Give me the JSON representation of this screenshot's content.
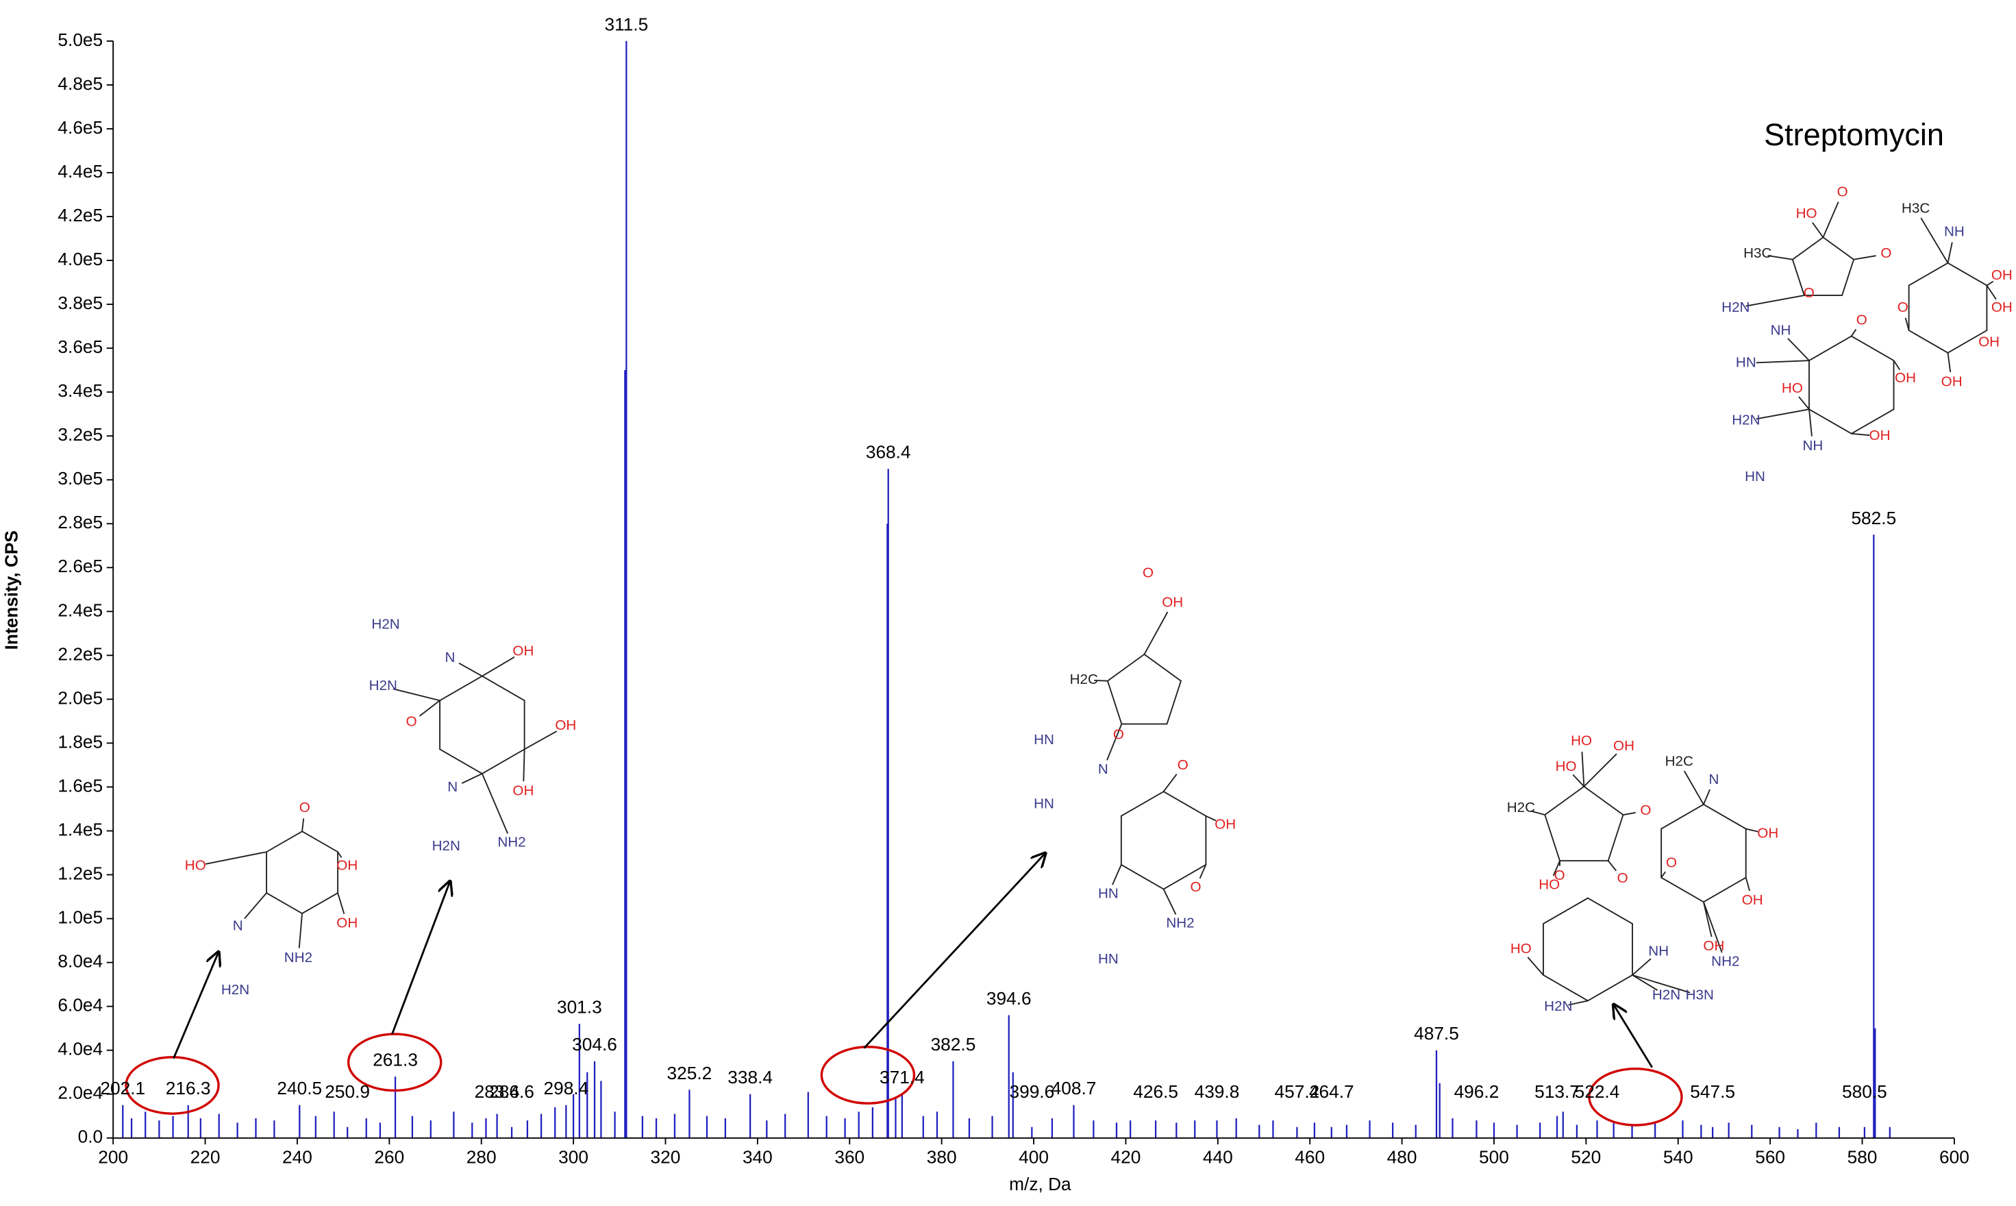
{
  "chart_data": {
    "type": "bar",
    "x_label": "m/z, Da",
    "y_label": "Intensity, CPS",
    "color": "#1f1fbf",
    "x": [
      202.1,
      216.3,
      240.5,
      250.9,
      261.3,
      283.4,
      286.6,
      298.4,
      301.3,
      304.6,
      311.5,
      325.2,
      338.4,
      368.4,
      371.4,
      382.5,
      394.6,
      399.6,
      408.7,
      426.5,
      439.8,
      457.2,
      464.7,
      487.5,
      496.2,
      513.7,
      522.4,
      547.5,
      580.5,
      582.5
    ],
    "values": [
      15000,
      15000,
      15000,
      5000,
      28000,
      11000,
      5000,
      15000,
      52000,
      35000,
      500000,
      22000,
      20000,
      305000,
      20000,
      35000,
      56000,
      5000,
      15000,
      8000,
      8000,
      5000,
      5000,
      40000,
      8000,
      10000,
      8000,
      5000,
      5000,
      275000
    ],
    "minor_peaks": {
      "x": [
        204,
        207,
        210,
        213,
        219,
        223,
        227,
        231,
        235,
        244,
        248,
        255,
        258,
        265,
        269,
        274,
        278,
        281,
        290,
        293,
        296,
        300,
        303,
        306,
        309,
        311.2,
        315,
        318,
        322,
        329,
        333,
        342,
        346,
        351,
        355,
        359,
        362,
        365,
        368.2,
        370,
        376,
        379,
        386,
        391,
        395.5,
        404,
        413,
        418,
        421,
        431,
        435,
        444,
        449,
        452,
        461,
        468,
        473,
        478,
        483,
        488.2,
        491,
        500,
        505,
        510,
        515,
        518,
        526,
        530,
        535,
        541,
        545,
        551,
        556,
        562,
        566,
        570,
        575,
        582.8,
        586
      ],
      "values": [
        9000,
        12000,
        8000,
        10000,
        9000,
        11000,
        7000,
        9000,
        8000,
        10000,
        12000,
        9000,
        7000,
        10000,
        8000,
        12000,
        7000,
        9000,
        8000,
        11000,
        14000,
        20000,
        30000,
        26000,
        12000,
        350000,
        10000,
        9000,
        11000,
        10000,
        9000,
        8000,
        11000,
        21000,
        10000,
        9000,
        12000,
        14000,
        280000,
        18000,
        10000,
        12000,
        9000,
        10000,
        30000,
        9000,
        8000,
        7000,
        8000,
        7000,
        8000,
        9000,
        6000,
        8000,
        7000,
        6000,
        8000,
        7000,
        6000,
        25000,
        9000,
        7000,
        6000,
        7000,
        12000,
        6000,
        7000,
        6000,
        7000,
        8000,
        6000,
        7000,
        6000,
        5000,
        4000,
        7000,
        5000,
        50000,
        5000
      ]
    },
    "xlim": [
      200,
      600
    ],
    "xticks": [
      200,
      220,
      240,
      260,
      280,
      300,
      320,
      340,
      360,
      380,
      400,
      420,
      440,
      460,
      480,
      500,
      520,
      540,
      560,
      580,
      600
    ],
    "ylim": [
      0,
      500000
    ],
    "yticks": [
      {
        "value": 0,
        "label": "0.0"
      },
      {
        "value": 20000,
        "label": "2.0e4"
      },
      {
        "value": 40000,
        "label": "4.0e4"
      },
      {
        "value": 60000,
        "label": "6.0e4"
      },
      {
        "value": 80000,
        "label": "8.0e4"
      },
      {
        "value": 100000,
        "label": "1.0e5"
      },
      {
        "value": 120000,
        "label": "1.2e5"
      },
      {
        "value": 140000,
        "label": "1.4e5"
      },
      {
        "value": 160000,
        "label": "1.6e5"
      },
      {
        "value": 180000,
        "label": "1.8e5"
      },
      {
        "value": 200000,
        "label": "2.0e5"
      },
      {
        "value": 220000,
        "label": "2.2e5"
      },
      {
        "value": 240000,
        "label": "2.4e5"
      },
      {
        "value": 260000,
        "label": "2.6e5"
      },
      {
        "value": 280000,
        "label": "2.8e5"
      },
      {
        "value": 300000,
        "label": "3.0e5"
      },
      {
        "value": 320000,
        "label": "3.2e5"
      },
      {
        "value": 340000,
        "label": "3.4e5"
      },
      {
        "value": 360000,
        "label": "3.6e5"
      },
      {
        "value": 380000,
        "label": "3.8e5"
      },
      {
        "value": 400000,
        "label": "4.0e5"
      },
      {
        "value": 420000,
        "label": "4.2e5"
      },
      {
        "value": 440000,
        "label": "4.4e5"
      },
      {
        "value": 460000,
        "label": "4.6e5"
      },
      {
        "value": 480000,
        "label": "4.8e5"
      },
      {
        "value": 500000,
        "label": "5.0e5"
      }
    ],
    "structure_title": "Streptomycin",
    "structures": [
      [
        "HO",
        "O",
        "H3C",
        "NH",
        "H3C",
        "O",
        "OH",
        "O",
        "O",
        "OH",
        "H2N",
        "O",
        "NH",
        "HN",
        "OH",
        "HO",
        "OH",
        "OH",
        "H2N",
        "NH",
        "OH",
        "HN"
      ],
      [
        "O",
        "HO",
        "OH",
        "OH",
        "N",
        "NH2",
        "H2N"
      ],
      [
        "H2N",
        "H2N",
        "N",
        "OH",
        "O",
        "OH",
        "OH",
        "N",
        "NH2",
        "H2N"
      ],
      [
        "O",
        "OH",
        "H2C",
        "O",
        "HN",
        "O",
        "HN",
        "N",
        "OH",
        "O",
        "HN",
        "NH2",
        "HN"
      ],
      [
        "HO",
        "OH",
        "H2C",
        "N",
        "H2C",
        "HO",
        "O",
        "OH",
        "O",
        "O",
        "OH",
        "OH",
        "HO",
        "O",
        "NH",
        "HO",
        "NH2",
        "H2N",
        "H3N",
        "H2N"
      ]
    ]
  }
}
